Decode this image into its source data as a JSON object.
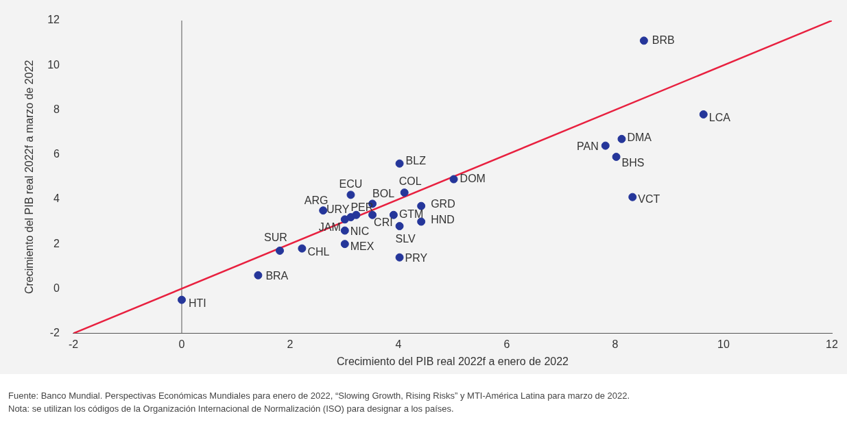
{
  "chart_data": {
    "type": "scatter",
    "xlabel": "Crecimiento del PIB real 2022f a enero de 2022",
    "ylabel": "Crecimiento del PIB real 2022f a marzo de 2022",
    "xlim": [
      -2,
      12
    ],
    "xticks": [
      -2,
      0,
      2,
      4,
      6,
      8,
      10,
      12
    ],
    "ylim": [
      -2,
      12
    ],
    "yticks": [
      -2,
      0,
      2,
      4,
      6,
      8,
      10,
      12
    ],
    "grid": false,
    "legend": false,
    "series": [
      {
        "type": "scatter",
        "marker": "circle",
        "color": "#25369a",
        "x": [
          8.53,
          9.63,
          8.12,
          7.82,
          8.02,
          8.32,
          5.02,
          4.02,
          4.11,
          3.12,
          3.52,
          2.61,
          3.12,
          3.22,
          3.01,
          3.52,
          3.91,
          4.42,
          4.42,
          4.02,
          3.01,
          3.01,
          4.02,
          1.81,
          2.22,
          1.41,
          0
        ],
        "values": [
          11.1,
          7.8,
          6.7,
          6.4,
          5.9,
          4.1,
          4.9,
          5.6,
          4.3,
          4.2,
          3.8,
          3.5,
          3.2,
          3.3,
          3.1,
          3.3,
          3.3,
          3.7,
          3.0,
          2.8,
          2.6,
          2.0,
          1.4,
          1.7,
          1.8,
          0.6,
          -0.5
        ]
      },
      {
        "type": "line",
        "color": "#e8203f",
        "x": [
          -2,
          12
        ],
        "values": [
          -2,
          12
        ]
      }
    ],
    "ref_lines": [
      {
        "axis": "x",
        "value": 0,
        "color": "#555555"
      }
    ],
    "annotations": [
      {
        "text": "BRB",
        "x": 8.53,
        "y": 11.1
      },
      {
        "text": "LCA",
        "x": 9.63,
        "y": 7.8
      },
      {
        "text": "DMA",
        "x": 8.12,
        "y": 6.7
      },
      {
        "text": "PAN",
        "x": 7.82,
        "y": 6.4
      },
      {
        "text": "BHS",
        "x": 8.02,
        "y": 5.9
      },
      {
        "text": "VCT",
        "x": 8.32,
        "y": 4.1
      },
      {
        "text": "DOM",
        "x": 5.02,
        "y": 4.9
      },
      {
        "text": "BLZ",
        "x": 4.02,
        "y": 5.6
      },
      {
        "text": "COL",
        "x": 4.11,
        "y": 4.3
      },
      {
        "text": "ECU",
        "x": 3.12,
        "y": 4.2
      },
      {
        "text": "BOL",
        "x": 3.52,
        "y": 3.8
      },
      {
        "text": "ARG",
        "x": 2.61,
        "y": 3.5
      },
      {
        "text": "URY",
        "x": 3.12,
        "y": 3.2
      },
      {
        "text": "PER",
        "x": 3.22,
        "y": 3.3
      },
      {
        "text": "JAM",
        "x": 3.01,
        "y": 3.1
      },
      {
        "text": "CRI",
        "x": 3.52,
        "y": 3.3
      },
      {
        "text": "GTM",
        "x": 3.91,
        "y": 3.3
      },
      {
        "text": "GRD",
        "x": 4.42,
        "y": 3.7
      },
      {
        "text": "HND",
        "x": 4.42,
        "y": 3.0
      },
      {
        "text": "SLV",
        "x": 4.02,
        "y": 2.8
      },
      {
        "text": "NIC",
        "x": 3.01,
        "y": 2.6
      },
      {
        "text": "MEX",
        "x": 3.01,
        "y": 2.0
      },
      {
        "text": "PRY",
        "x": 4.02,
        "y": 1.4
      },
      {
        "text": "SUR",
        "x": 1.81,
        "y": 1.7
      },
      {
        "text": "CHL",
        "x": 2.22,
        "y": 1.8
      },
      {
        "text": "BRA",
        "x": 1.41,
        "y": 0.6
      },
      {
        "text": "HTI",
        "x": 0,
        "y": -0.5
      },
      "Fuente: Banco Mundial. Perspectivas Económicas Mundiales para enero de 2022, “Slowing Growth, Rising Risks” y MTI-América Latina para marzo de 2022.",
      "Nota: se utilizan los códigos de la Organización Internacional de Normalización (ISO) para designar a los países."
    ]
  }
}
